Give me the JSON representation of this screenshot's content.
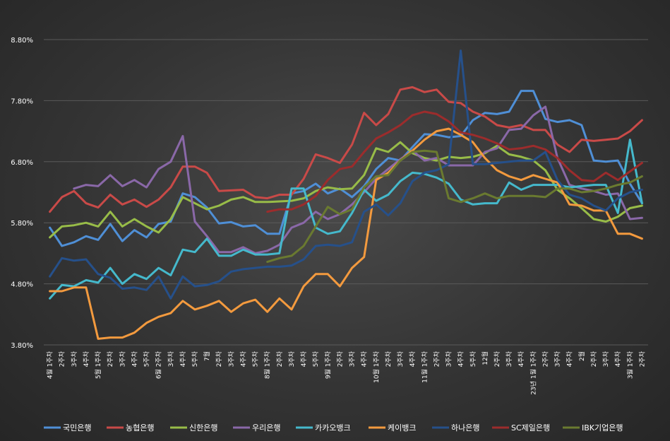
{
  "chart_data": {
    "type": "line",
    "title": "",
    "xlabel": "",
    "ylabel": "",
    "ylim": [
      3.8,
      8.8
    ],
    "yticks": [
      "3.80%",
      "4.80%",
      "5.80%",
      "6.80%",
      "7.80%",
      "8.80%"
    ],
    "ytick_values": [
      3.8,
      4.8,
      5.8,
      6.8,
      7.8,
      8.8
    ],
    "grid": true,
    "legend_position": "bottom",
    "x_labels": [
      "4월 1주차",
      "2주차",
      "3주차",
      "4주차",
      "5월 1주차",
      "2주차",
      "3주차",
      "4주차",
      "5주차",
      "6월 2주차",
      "3주차",
      "4주차",
      "5주차",
      "7월",
      "2주차",
      "3주차",
      "4주차",
      "5주차",
      "8월 1주차",
      "2주차",
      "3주차",
      "4주차",
      "5주차",
      "9월 1주차",
      "2주차",
      "3주차",
      "4주차",
      "10월 1주차",
      "2주차",
      "3주차",
      "4주차",
      "11월 1주차",
      "2주차",
      "3주차",
      "4주차",
      "5주차",
      "12월",
      "2주차",
      "3주차",
      "4주차",
      "23년 1월 1주차",
      "2주차",
      "3주차",
      "4주차",
      "2월",
      "2주차",
      "3주차",
      "4주차",
      "3월 1주차",
      "2주차"
    ],
    "series": [
      {
        "name": "국민은행",
        "color": "#4f8fd6",
        "values": [
          5.72,
          5.42,
          5.48,
          5.58,
          5.52,
          5.78,
          5.5,
          5.68,
          5.56,
          5.78,
          5.82,
          6.28,
          6.22,
          6.05,
          5.79,
          5.81,
          5.74,
          5.76,
          5.62,
          5.62,
          6.28,
          6.32,
          6.44,
          6.28,
          6.36,
          6.22,
          6.4,
          6.68,
          6.86,
          6.82,
          7.04,
          7.25,
          7.24,
          7.2,
          7.22,
          7.48,
          7.6,
          7.58,
          7.62,
          7.96,
          7.96,
          7.5,
          7.45,
          7.48,
          7.4,
          6.82,
          6.8,
          6.82,
          6.44,
          6.12
        ]
      },
      {
        "name": "농협은행",
        "color": "#c94a48",
        "values": [
          5.98,
          6.22,
          6.32,
          6.12,
          6.05,
          6.26,
          6.1,
          6.18,
          6.06,
          6.18,
          6.38,
          6.72,
          6.72,
          6.62,
          6.32,
          6.33,
          6.34,
          6.22,
          6.2,
          6.26,
          6.26,
          6.52,
          6.92,
          6.86,
          6.78,
          7.08,
          7.6,
          7.4,
          7.58,
          7.98,
          8.02,
          7.94,
          7.98,
          7.78,
          7.76,
          7.62,
          7.54,
          7.4,
          7.36,
          7.4,
          7.32,
          7.32,
          7.08,
          6.96,
          7.16,
          7.14,
          7.16,
          7.18,
          7.3,
          7.48
        ]
      },
      {
        "name": "신한은행",
        "color": "#98bc48",
        "values": [
          5.56,
          5.74,
          5.76,
          5.8,
          5.74,
          5.98,
          5.74,
          5.86,
          5.74,
          5.64,
          5.86,
          6.22,
          6.12,
          6.02,
          6.08,
          6.18,
          6.22,
          6.14,
          6.14,
          6.15,
          6.16,
          6.2,
          6.32,
          6.38,
          6.35,
          6.36,
          6.58,
          7.02,
          6.96,
          7.12,
          6.94,
          6.86,
          6.82,
          6.88,
          6.86,
          6.88,
          6.94,
          7.06,
          6.92,
          6.88,
          6.82,
          6.66,
          6.34,
          6.2,
          6.04,
          5.86,
          5.82,
          5.9,
          6.04,
          6.08
        ]
      },
      {
        "name": "우리은행",
        "color": "#8a68a8",
        "values": [
          null,
          null,
          6.36,
          6.42,
          6.4,
          6.58,
          6.4,
          6.5,
          6.38,
          6.68,
          6.8,
          7.22,
          5.82,
          5.58,
          5.32,
          5.32,
          5.4,
          5.3,
          5.34,
          5.44,
          5.72,
          5.8,
          5.98,
          5.86,
          5.94,
          6.1,
          6.3,
          6.52,
          6.68,
          6.84,
          6.98,
          6.82,
          6.86,
          6.74,
          6.74,
          6.74,
          6.96,
          7.02,
          7.32,
          7.34,
          7.56,
          7.7,
          6.86,
          6.42,
          6.36,
          6.32,
          6.26,
          6.28,
          5.86,
          5.88
        ]
      },
      {
        "name": "카카오뱅크",
        "color": "#45b9cc",
        "values": [
          4.56,
          4.78,
          4.76,
          4.86,
          4.82,
          5.06,
          4.8,
          4.96,
          4.88,
          5.06,
          4.94,
          5.36,
          5.32,
          5.54,
          5.26,
          5.26,
          5.36,
          5.28,
          5.28,
          5.3,
          6.36,
          6.36,
          5.72,
          5.62,
          5.66,
          5.96,
          6.34,
          6.16,
          6.26,
          6.48,
          6.62,
          6.6,
          6.54,
          6.44,
          6.18,
          6.1,
          6.12,
          6.12,
          6.46,
          6.34,
          6.42,
          6.42,
          6.42,
          6.38,
          6.4,
          6.42,
          6.42,
          5.96,
          7.16,
          6.12
        ]
      },
      {
        "name": "케이뱅크",
        "color": "#f39a3e",
        "values": [
          4.68,
          4.68,
          4.74,
          4.74,
          3.9,
          3.92,
          3.92,
          4.0,
          4.16,
          4.26,
          4.32,
          4.52,
          4.38,
          4.44,
          4.52,
          4.34,
          4.48,
          4.54,
          4.34,
          4.56,
          4.38,
          4.76,
          4.96,
          4.96,
          4.76,
          5.06,
          5.24,
          6.5,
          6.62,
          6.82,
          6.98,
          7.16,
          7.3,
          7.34,
          7.24,
          7.12,
          6.86,
          6.66,
          6.56,
          6.5,
          6.58,
          6.52,
          6.46,
          6.1,
          6.08,
          6.0,
          6.0,
          5.62,
          5.62,
          5.54
        ]
      },
      {
        "name": "하나은행",
        "color": "#26508a",
        "values": [
          4.92,
          5.22,
          5.18,
          5.2,
          4.96,
          4.9,
          4.72,
          4.74,
          4.7,
          4.92,
          4.56,
          4.92,
          4.76,
          4.78,
          4.84,
          5.0,
          5.04,
          5.06,
          5.08,
          5.08,
          5.1,
          5.2,
          5.42,
          5.44,
          5.42,
          5.48,
          5.98,
          6.1,
          5.92,
          6.12,
          6.48,
          6.62,
          6.66,
          6.76,
          8.62,
          6.76,
          6.76,
          6.78,
          6.8,
          6.82,
          6.82,
          6.96,
          6.5,
          6.26,
          6.2,
          6.08,
          6.0,
          6.2,
          6.3,
          6.34
        ]
      },
      {
        "name": "SC제일은행",
        "color": "#9c2c2c",
        "values": [
          null,
          null,
          null,
          null,
          null,
          null,
          null,
          null,
          null,
          null,
          null,
          null,
          null,
          null,
          null,
          null,
          null,
          null,
          5.98,
          6.02,
          6.02,
          6.1,
          6.24,
          6.5,
          6.68,
          6.72,
          6.96,
          7.18,
          7.28,
          7.4,
          7.56,
          7.62,
          7.58,
          7.46,
          7.28,
          7.24,
          7.18,
          7.1,
          7.0,
          7.02,
          7.06,
          7.0,
          6.86,
          6.66,
          6.5,
          6.48,
          6.62,
          6.5,
          6.64,
          6.78
        ]
      },
      {
        "name": "IBK기업은행",
        "color": "#6a7a30",
        "values": [
          null,
          null,
          null,
          null,
          null,
          null,
          null,
          null,
          null,
          null,
          null,
          null,
          null,
          null,
          null,
          null,
          null,
          null,
          5.16,
          5.22,
          5.26,
          5.42,
          5.74,
          6.06,
          5.94,
          6.02,
          6.38,
          6.56,
          6.58,
          6.82,
          6.96,
          6.98,
          6.96,
          6.2,
          6.14,
          6.2,
          6.28,
          6.2,
          6.24,
          6.24,
          6.24,
          6.22,
          6.36,
          6.36,
          6.3,
          6.32,
          6.36,
          6.42,
          6.46,
          6.56
        ]
      }
    ]
  }
}
